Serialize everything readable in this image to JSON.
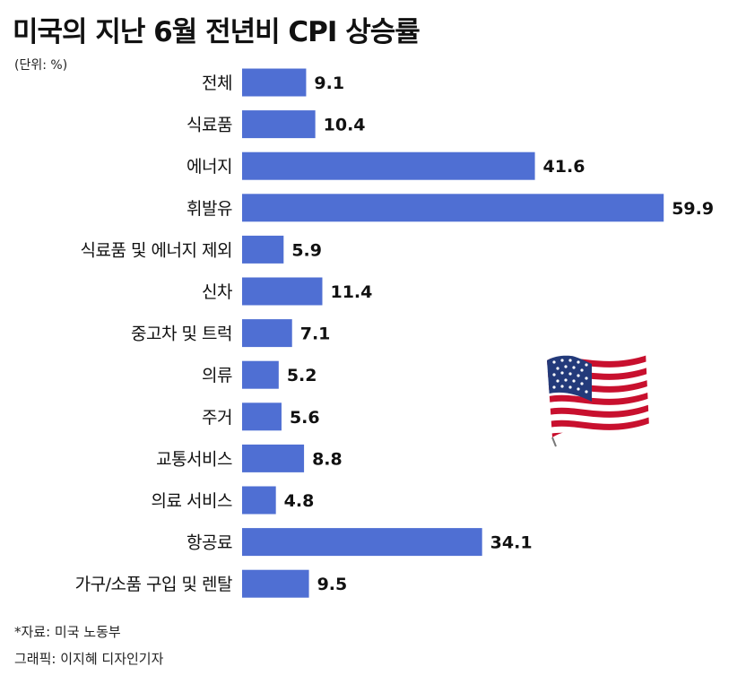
{
  "chart_data": {
    "type": "bar",
    "orientation": "horizontal",
    "title": "미국의 지난 6월 전년비 CPI 상승률",
    "unit_note": "(단위: %)",
    "categories": [
      "전체",
      "식료품",
      "에너지",
      "휘발유",
      "식료품 및 에너지 제외",
      "신차",
      "중고차 및 트럭",
      "의류",
      "주거",
      "교통서비스",
      "의료 서비스",
      "항공료",
      "가구/소품 구입 및 렌탈"
    ],
    "values": [
      9.1,
      10.4,
      41.6,
      59.9,
      5.9,
      11.4,
      7.1,
      5.2,
      5.6,
      8.8,
      4.8,
      34.1,
      9.5
    ],
    "xlim": [
      0,
      60
    ],
    "grid": false,
    "bar_color": "#4f6fd3"
  },
  "footer": {
    "source": "*자료: 미국 노동부",
    "credit": "그래픽: 이지혜 디자인기자"
  },
  "flag_icon": "us-flag-icon"
}
